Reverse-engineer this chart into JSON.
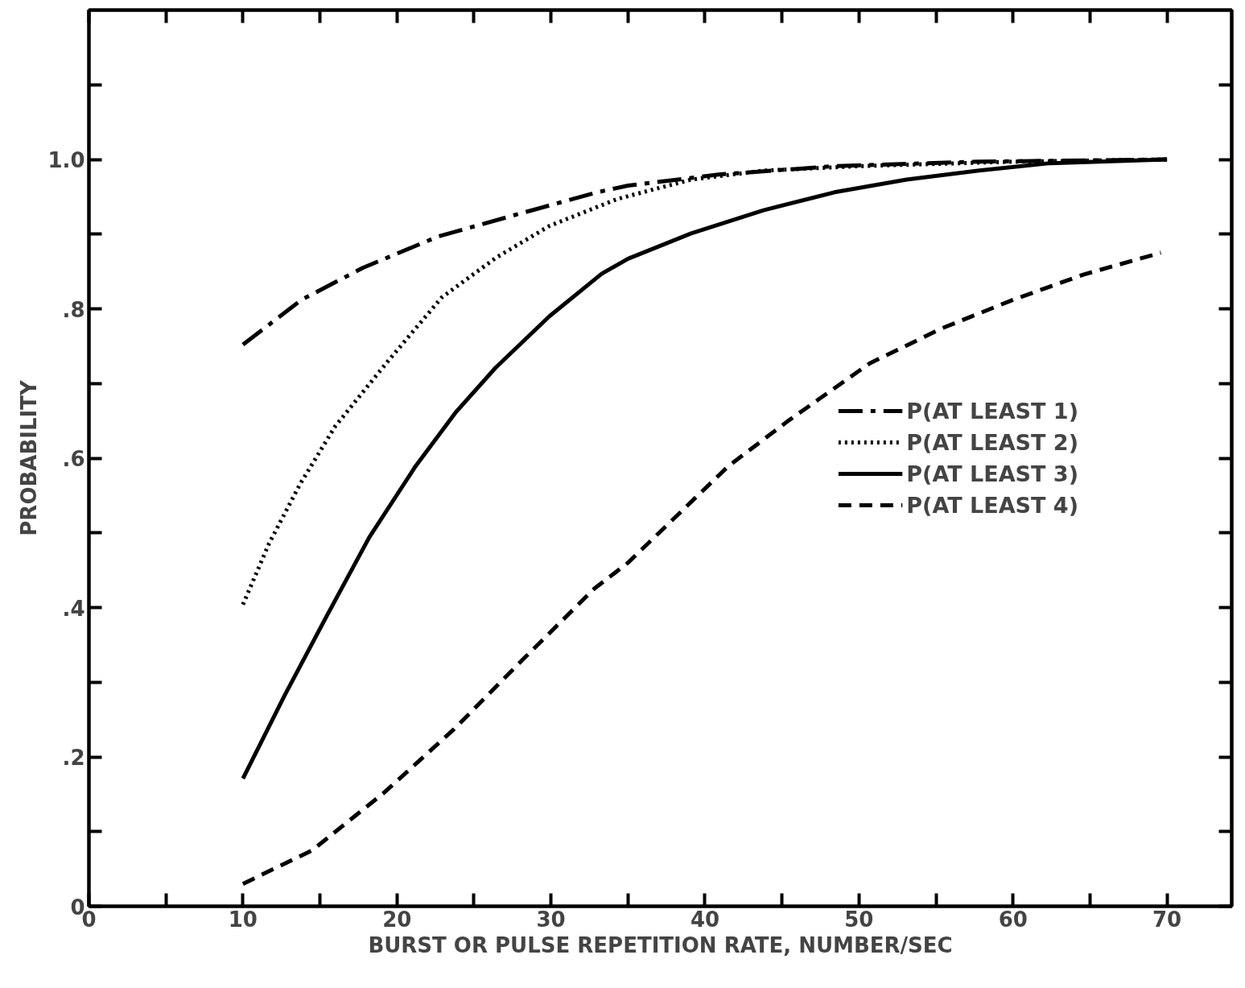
{
  "chart_data": {
    "type": "line",
    "xlabel": "BURST OR PULSE REPETITION RATE, NUMBER/SEC",
    "ylabel": "PROBABILITY",
    "xlim": [
      0,
      74.2
    ],
    "ylim": [
      0,
      1.2
    ],
    "xticks": [
      0,
      {
        "value": 5,
        "label": null
      },
      10,
      {
        "value": 15,
        "label": null
      },
      20,
      {
        "value": 25,
        "label": null
      },
      30,
      {
        "value": 35,
        "label": null
      },
      40,
      {
        "value": 45,
        "label": null
      },
      50,
      {
        "value": 55,
        "label": null
      },
      60,
      {
        "value": 65,
        "label": null
      },
      70
    ],
    "yticks": [
      0,
      {
        "value": 0.1,
        "label": null
      },
      {
        "value": 0.2,
        "label": ".2"
      },
      {
        "value": 0.3,
        "label": null
      },
      {
        "value": 0.4,
        "label": ".4"
      },
      {
        "value": 0.5,
        "label": null
      },
      {
        "value": 0.6,
        "label": ".6"
      },
      {
        "value": 0.7,
        "label": null
      },
      {
        "value": 0.8,
        "label": ".8"
      },
      {
        "value": 0.9,
        "label": null
      },
      {
        "value": 1.0,
        "label": "1.0"
      },
      {
        "value": 1.1,
        "label": null
      }
    ],
    "grid": false,
    "legend": "center right",
    "marker": "none",
    "series": [
      {
        "name": "P(AT LEAST 1)",
        "color": "#000000",
        "line_style": "dashdot",
        "x": [
          10,
          13.8,
          17.8,
          22.7,
          27.9,
          33,
          35,
          41,
          48.4,
          57.7,
          70
        ],
        "values": [
          0.752,
          0.812,
          0.855,
          0.897,
          0.927,
          0.956,
          0.965,
          0.98,
          0.991,
          0.997,
          1.0
        ]
      },
      {
        "name": "P(AT LEAST 2)",
        "color": "#000000",
        "line_style": "dotted",
        "x": [
          10,
          11.7,
          13.7,
          16,
          19.5,
          22.9,
          26.4,
          29.9,
          34.3,
          39.1,
          43.8,
          50,
          60,
          70
        ],
        "values": [
          0.404,
          0.486,
          0.565,
          0.643,
          0.732,
          0.815,
          0.868,
          0.911,
          0.947,
          0.973,
          0.985,
          0.991,
          0.997,
          1.0
        ]
      },
      {
        "name": "P(AT LEAST 3)",
        "color": "#000000",
        "line_style": "solid",
        "x": [
          10,
          12.7,
          15.5,
          18.2,
          21.2,
          23.8,
          26.4,
          29.9,
          33.3,
          35,
          39.1,
          43.8,
          48.4,
          53.1,
          57.7,
          62.4,
          70
        ],
        "values": [
          0.171,
          0.282,
          0.391,
          0.494,
          0.589,
          0.661,
          0.721,
          0.79,
          0.847,
          0.867,
          0.901,
          0.932,
          0.956,
          0.973,
          0.985,
          0.995,
          1.0
        ]
      },
      {
        "name": "P(AT LEAST 4)",
        "color": "#000000",
        "line_style": "dashed",
        "x": [
          10,
          14.5,
          19.1,
          23.7,
          28.2,
          32.8,
          35,
          41.5,
          45.4,
          50.7,
          55.4,
          60,
          64.6,
          69.6
        ],
        "values": [
          0.03,
          0.075,
          0.151,
          0.237,
          0.331,
          0.425,
          0.46,
          0.589,
          0.65,
          0.727,
          0.774,
          0.812,
          0.846,
          0.875
        ]
      }
    ]
  }
}
